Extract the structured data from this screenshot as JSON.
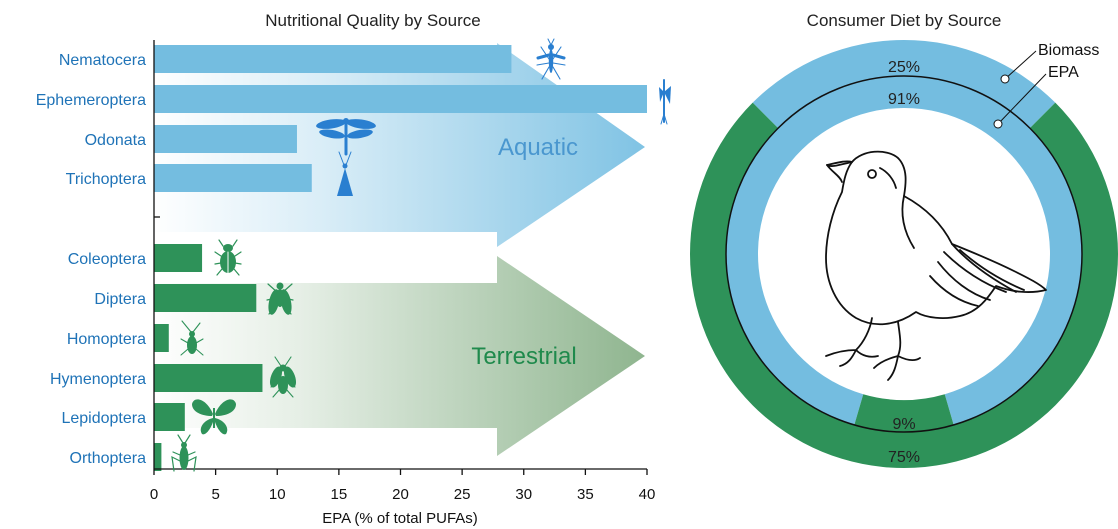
{
  "colors": {
    "aquatic": "#74bde0",
    "aquatic_label": "#1f73b7",
    "terrestrial": "#2e9259",
    "terrestrial_label": "#1f8a4c"
  },
  "icons": {
    "aquatic": [
      "mosquito-icon",
      "mayfly-icon",
      "dragonfly-icon",
      "caddisfly-icon"
    ],
    "terrestrial": [
      "beetle-icon",
      "fly-icon",
      "leafhopper-icon",
      "wasp-icon",
      "butterfly-icon",
      "grasshopper-icon"
    ],
    "center": "bird-icon"
  },
  "chart_data": [
    {
      "type": "bar",
      "orientation": "horizontal",
      "title": "Nutritional Quality by Source",
      "xlabel": "EPA (% of total PUFAs)",
      "xlim": [
        0,
        40
      ],
      "xticks": [
        0,
        5,
        10,
        15,
        20,
        25,
        30,
        35,
        40
      ],
      "groups": [
        {
          "name": "Aquatic",
          "categories": [
            "Nematocera",
            "Ephemeroptera",
            "Odonata",
            "Trichoptera"
          ],
          "values": [
            29,
            40,
            11.6,
            12.8
          ]
        },
        {
          "name": "Terrestrial",
          "categories": [
            "Coleoptera",
            "Diptera",
            "Homoptera",
            "Hymenoptera",
            "Lepidoptera",
            "Orthoptera"
          ],
          "values": [
            3.9,
            8.3,
            1.2,
            8.8,
            2.5,
            0.6
          ]
        }
      ]
    },
    {
      "type": "pie",
      "title": "Consumer Diet by Source",
      "rings": [
        {
          "name": "Biomass",
          "slices": [
            {
              "source": "Aquatic",
              "value": 25,
              "label": "25%"
            },
            {
              "source": "Terrestrial",
              "value": 75,
              "label": "75%"
            }
          ]
        },
        {
          "name": "EPA",
          "slices": [
            {
              "source": "Aquatic",
              "value": 91,
              "label": "91%"
            },
            {
              "source": "Terrestrial",
              "value": 9,
              "label": "9%"
            }
          ]
        }
      ]
    }
  ]
}
